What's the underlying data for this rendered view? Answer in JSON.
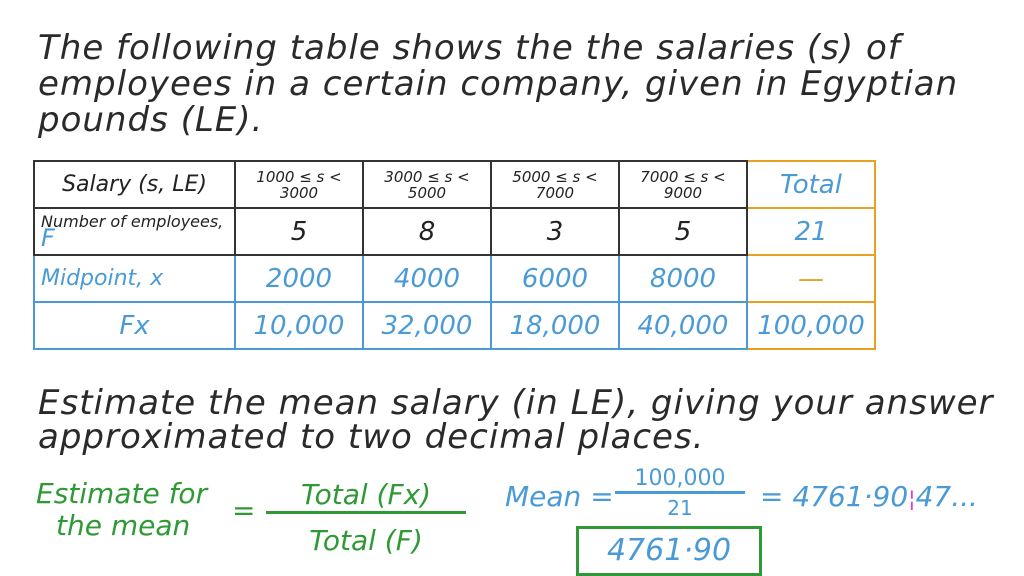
{
  "question": {
    "lines": [
      "The following table shows the the salaries (s) of",
      "employees in a certain company, given in Egyptian",
      "pounds (LE)."
    ],
    "prompt_lines": [
      "Estimate the mean salary (in LE), giving your answer",
      "approximated to two decimal places."
    ]
  },
  "table": {
    "header": {
      "label": "Salary (s, LE)",
      "classes": [
        "1000 ≤ s < 3000",
        "3000 ≤ s < 5000",
        "5000 ≤ s < 7000",
        "7000 ≤ s < 9000"
      ],
      "total": "Total"
    },
    "rows": [
      {
        "label": "Number of employees,",
        "label_suffix": "F",
        "values": [
          "5",
          "8",
          "3",
          "5"
        ],
        "total": "21"
      },
      {
        "label": "Midpoint, x",
        "values": [
          "2000",
          "4000",
          "6000",
          "8000"
        ],
        "total": "—"
      },
      {
        "label": "Fx",
        "values": [
          "10,000",
          "32,000",
          "18,000",
          "40,000"
        ],
        "total": "100,000"
      }
    ]
  },
  "solution": {
    "estimate_label": [
      "Estimate for",
      "the mean"
    ],
    "equals": "=",
    "formula_num": "Total (Fx)",
    "formula_den": "Total (F)",
    "mean_label": "Mean =",
    "mean_num": "100,000",
    "mean_den": "21",
    "result_prefix": "= 4761·90",
    "result_suffix": "47...",
    "answer": "4761·90"
  },
  "colors": {
    "ink": "#2a2a2a",
    "blue": "#4a9ad6",
    "green": "#2f9a35",
    "orange": "#e8a020",
    "magenta": "#e040c0"
  }
}
